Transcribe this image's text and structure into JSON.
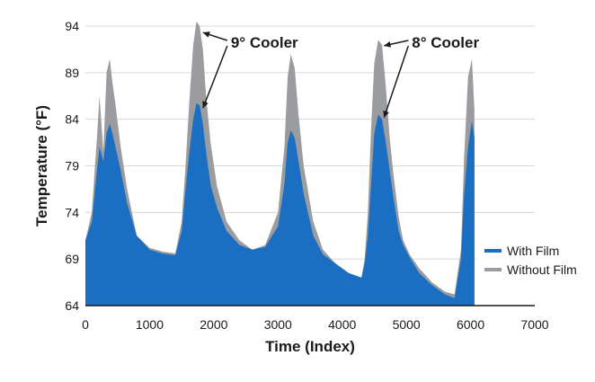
{
  "chart_data": {
    "type": "area",
    "xlabel": "Time (Index)",
    "ylabel": "Temperature (°F)",
    "xlim": [
      0,
      7000
    ],
    "ylim": [
      64,
      94
    ],
    "x_ticks": [
      0,
      1000,
      2000,
      3000,
      4000,
      5000,
      6000,
      7000
    ],
    "y_ticks": [
      64,
      69,
      74,
      79,
      84,
      89,
      94
    ],
    "grid": "horizontal",
    "legend_position": "bottom-right",
    "series": [
      {
        "name": "Without Film",
        "color": "#9b9ca0",
        "x": [
          0,
          100,
          180,
          220,
          280,
          330,
          380,
          420,
          470,
          550,
          650,
          800,
          1000,
          1200,
          1400,
          1500,
          1560,
          1620,
          1680,
          1730,
          1780,
          1830,
          1880,
          1950,
          2050,
          2200,
          2400,
          2600,
          2800,
          3000,
          3100,
          3150,
          3200,
          3260,
          3320,
          3400,
          3550,
          3700,
          3900,
          4100,
          4300,
          4350,
          4400,
          4450,
          4500,
          4560,
          4620,
          4680,
          4740,
          4800,
          4880,
          4950,
          5050,
          5200,
          5400,
          5600,
          5750,
          5850,
          5900,
          5960,
          6020,
          6060,
          6060
        ],
        "values": [
          71,
          74,
          82,
          86.5,
          80.5,
          89,
          90.5,
          88,
          85.5,
          81,
          76.5,
          71.5,
          70.2,
          69.8,
          69.6,
          73,
          79,
          86,
          92,
          94.5,
          94,
          91.5,
          86.5,
          81.5,
          76.8,
          73,
          71,
          70,
          70.5,
          74,
          81,
          88.5,
          91,
          89.5,
          84.5,
          79,
          73,
          70,
          68.5,
          67.5,
          67,
          69,
          74,
          83,
          90,
          92.5,
          92,
          87.5,
          82,
          78,
          73.5,
          71,
          69.5,
          68,
          66.5,
          65.5,
          65.2,
          70,
          80,
          88.5,
          90.5,
          85,
          64
        ]
      },
      {
        "name": "With Film",
        "color": "#1a6fc2",
        "x": [
          0,
          100,
          180,
          220,
          280,
          330,
          380,
          420,
          470,
          550,
          650,
          800,
          1000,
          1200,
          1400,
          1500,
          1560,
          1620,
          1680,
          1730,
          1780,
          1830,
          1880,
          1950,
          2050,
          2200,
          2400,
          2600,
          2800,
          3000,
          3100,
          3150,
          3200,
          3260,
          3320,
          3400,
          3550,
          3700,
          3900,
          4100,
          4300,
          4350,
          4400,
          4450,
          4500,
          4560,
          4620,
          4680,
          4740,
          4800,
          4880,
          4950,
          5050,
          5200,
          5400,
          5600,
          5750,
          5850,
          5900,
          5960,
          6020,
          6060,
          6060
        ],
        "values": [
          71,
          73,
          78.5,
          81,
          79.5,
          82.5,
          83.5,
          82.5,
          81,
          78.5,
          75,
          71.5,
          70,
          69.6,
          69.4,
          72,
          76.5,
          80.5,
          84,
          85.7,
          85.5,
          83.5,
          80.5,
          77,
          74.5,
          72,
          70.5,
          70,
          70.3,
          72.5,
          77,
          81.5,
          82.8,
          82,
          79.5,
          76,
          71.5,
          69.5,
          68.5,
          67.5,
          67,
          68.5,
          71.5,
          77,
          82.5,
          84.5,
          84,
          81.5,
          78.5,
          75.5,
          72,
          70.5,
          69.2,
          67.5,
          66.2,
          65.2,
          64.8,
          69,
          76,
          81,
          83.8,
          82,
          64
        ]
      }
    ],
    "annotations": [
      {
        "text": "9° Cooler",
        "x_peak": 1790
      },
      {
        "text": "8° Cooler",
        "x_peak": 4610
      }
    ]
  }
}
